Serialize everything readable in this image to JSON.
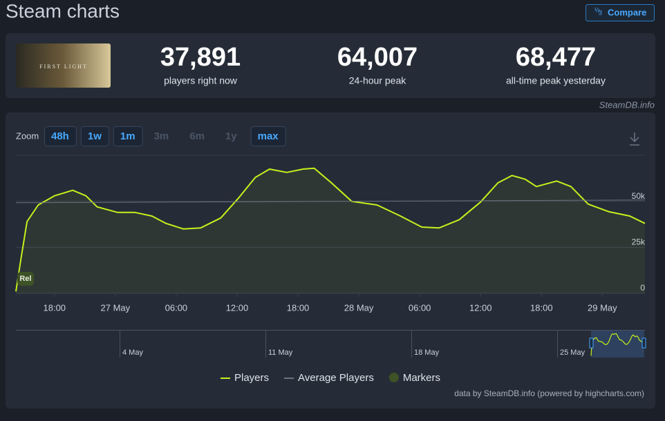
{
  "header": {
    "title": "Steam charts",
    "compare": "Compare"
  },
  "game": {
    "logo_text": "FIRST LIGHT"
  },
  "stats": [
    {
      "value": "37,891",
      "label": "players right now"
    },
    {
      "value": "64,007",
      "label": "24-hour peak"
    },
    {
      "value": "68,477",
      "label": "all-time peak yesterday"
    }
  ],
  "source": "SteamDB.info",
  "zoom": {
    "label": "Zoom",
    "buttons": [
      {
        "label": "48h",
        "enabled": true
      },
      {
        "label": "1w",
        "enabled": true
      },
      {
        "label": "1m",
        "enabled": true
      },
      {
        "label": "3m",
        "enabled": false
      },
      {
        "label": "6m",
        "enabled": false
      },
      {
        "label": "1y",
        "enabled": false
      },
      {
        "label": "max",
        "enabled": true
      }
    ]
  },
  "chart_data": {
    "type": "line",
    "xlim": [
      -3.8,
      58.2
    ],
    "ylim": [
      0,
      75000
    ],
    "xticks": [
      {
        "value": 0,
        "label": "18:00"
      },
      {
        "value": 6,
        "label": "27 May"
      },
      {
        "value": 12,
        "label": "06:00"
      },
      {
        "value": 18,
        "label": "12:00"
      },
      {
        "value": 24,
        "label": "18:00"
      },
      {
        "value": 30,
        "label": "28 May"
      },
      {
        "value": 36,
        "label": "06:00"
      },
      {
        "value": 42,
        "label": "12:00"
      },
      {
        "value": 48,
        "label": "18:00"
      },
      {
        "value": 54,
        "label": "29 May"
      }
    ],
    "yticks": [
      0,
      {
        "value": 25000,
        "label": "25k"
      },
      {
        "value": 50000,
        "label": "50k"
      }
    ],
    "grid": true,
    "series": [
      {
        "name": "Players",
        "color": "#c6f21c",
        "x": [
          -3.8,
          -3.3,
          -2.7,
          -1.6,
          0,
          1.8,
          3.1,
          4.2,
          6.2,
          7.9,
          9.6,
          11,
          12.7,
          14.4,
          16.4,
          18.1,
          19.8,
          21.2,
          22.9,
          24.5,
          25.6,
          27.3,
          29.3,
          31.8,
          34.1,
          36.2,
          37.9,
          39.9,
          42,
          43.7,
          45.1,
          46.4,
          47.5,
          49.5,
          50.9,
          52.6,
          54.6,
          56.7,
          58.2
        ],
        "values": [
          1000,
          18700,
          39000,
          48000,
          53000,
          56000,
          53000,
          47000,
          44000,
          44000,
          42000,
          38000,
          35000,
          35500,
          41000,
          51500,
          63000,
          67500,
          65700,
          67500,
          68000,
          60000,
          50000,
          48000,
          42000,
          36000,
          35500,
          40000,
          49600,
          60000,
          64000,
          62000,
          58000,
          61000,
          58000,
          48500,
          44400,
          42000,
          38000
        ]
      },
      {
        "name": "Average Players",
        "color": "#6b7280",
        "x": [
          -3.8,
          58.2
        ],
        "values": [
          49200,
          50700
        ]
      }
    ],
    "markers": {
      "name": "Markers",
      "color": "#3d5226",
      "x": [
        -3.6
      ],
      "labels": [
        "Rel"
      ]
    }
  },
  "navigator": {
    "labels": [
      "4 May",
      "11 May",
      "18 May",
      "25 May"
    ]
  },
  "credit": "data by SteamDB.info (powered by highcharts.com)"
}
